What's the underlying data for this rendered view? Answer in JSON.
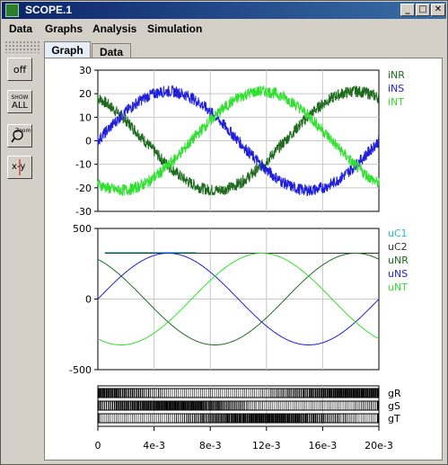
{
  "window": {
    "title": "SCOPE.1"
  },
  "menubar": {
    "items": [
      "Data",
      "Graphs",
      "Analysis",
      "Simulation"
    ]
  },
  "tabs": [
    {
      "label": "Graph"
    },
    {
      "label": "Data"
    }
  ],
  "toolbar": {
    "off_label": "off",
    "show_all_top": "SHOW",
    "show_all_bottom": "ALL",
    "zoom_label": "Zoom",
    "xy_label": "x-y"
  },
  "colors": {
    "dark_green": "#1e6b1e",
    "blue": "#1f1fd8",
    "light_green": "#2fe02f",
    "cyan": "#1fc2c2",
    "dark_gray": "#303030"
  },
  "chart_data": [
    {
      "type": "line",
      "title": "",
      "ylim": [
        -30,
        30
      ],
      "xlim": [
        0,
        0.02
      ],
      "yticks": [
        "30",
        "20",
        "10",
        "0",
        "-10",
        "-20",
        "-30"
      ],
      "series": [
        {
          "name": "iNR",
          "amplitude": 21,
          "phase_deg": 120,
          "frequency_hz": 50
        },
        {
          "name": "iNS",
          "amplitude": 21,
          "phase_deg": 0,
          "frequency_hz": 50
        },
        {
          "name": "iNT",
          "amplitude": 21,
          "phase_deg": -120,
          "frequency_hz": 50
        }
      ]
    },
    {
      "type": "line",
      "title": "",
      "ylim": [
        -500,
        500
      ],
      "xlim": [
        0,
        0.02
      ],
      "yticks": [
        "500",
        "0",
        "-500"
      ],
      "series": [
        {
          "name": "uC1",
          "values_note": "constant",
          "value": 330,
          "x_end": 0.007
        },
        {
          "name": "uC2",
          "values_note": "constant",
          "value": 325
        },
        {
          "name": "uNR",
          "amplitude": 325,
          "phase_deg": 120,
          "frequency_hz": 50
        },
        {
          "name": "uNS",
          "amplitude": 325,
          "phase_deg": 0,
          "frequency_hz": 50
        },
        {
          "name": "uNT",
          "amplitude": 325,
          "phase_deg": -120,
          "frequency_hz": 50
        }
      ]
    },
    {
      "type": "line",
      "title": "",
      "xlim": [
        0,
        0.02
      ],
      "xticks": [
        "0",
        "4e-3",
        "8e-3",
        "12e-3",
        "16e-3",
        "20e-3"
      ],
      "series": [
        {
          "name": "gR",
          "values_note": "switching signal"
        },
        {
          "name": "gS",
          "values_note": "switching signal"
        },
        {
          "name": "gT",
          "values_note": "switching signal"
        }
      ]
    }
  ]
}
